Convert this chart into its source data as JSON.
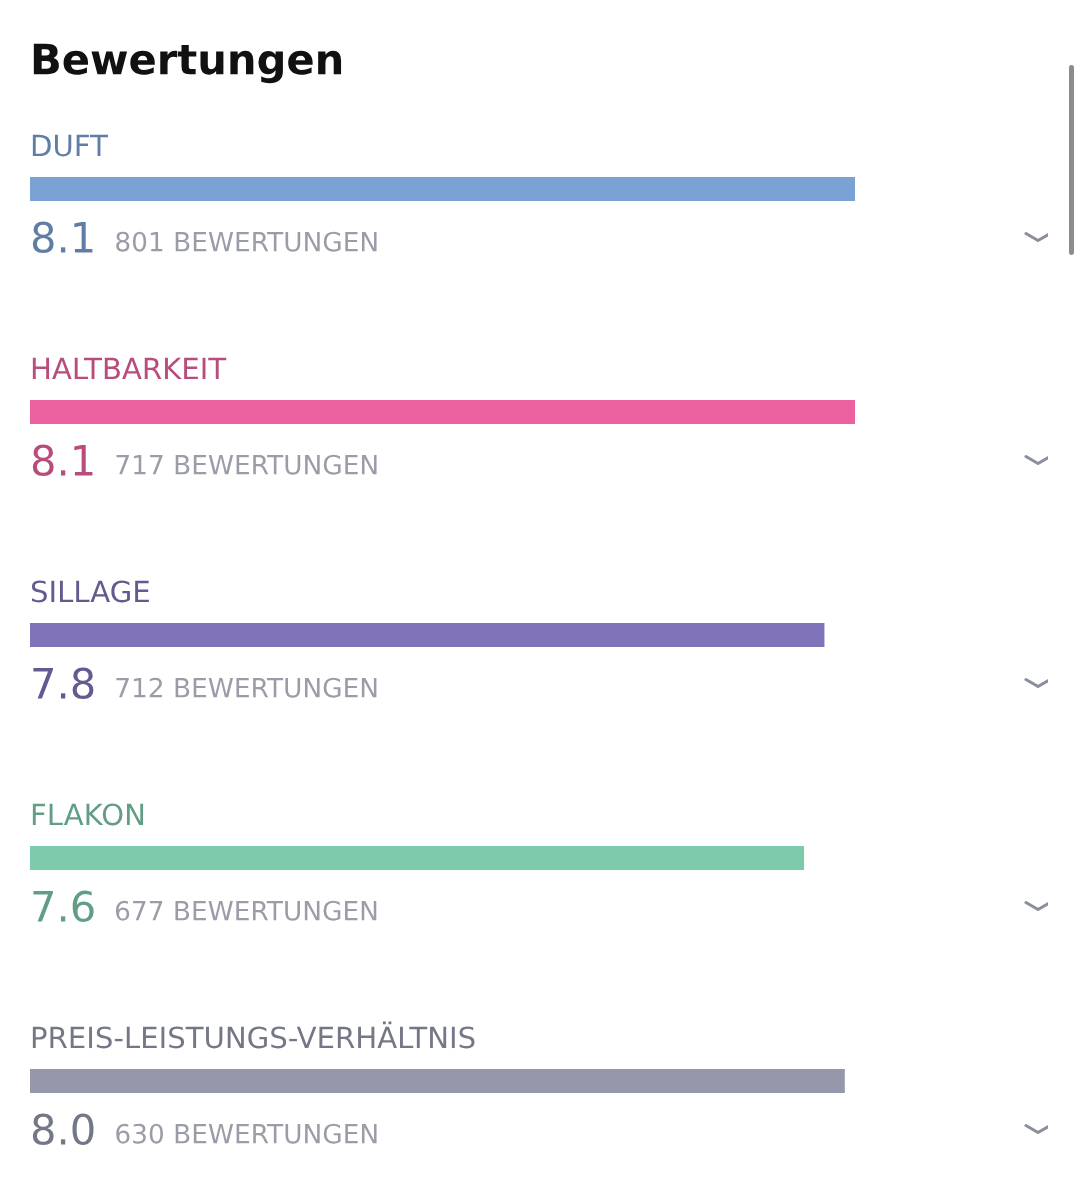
{
  "chart_data": {
    "type": "bar",
    "orientation": "horizontal",
    "title": "Bewertungen",
    "categories": [
      "DUFT",
      "HALTBARKEIT",
      "SILLAGE",
      "FLAKON",
      "PREIS-LEISTUNGS-VERHÄLTNIS"
    ],
    "values": [
      8.1,
      8.1,
      7.8,
      7.6,
      8.0
    ],
    "colors": [
      "#7ba2d4",
      "#ec619f",
      "#8073b9",
      "#7dcaaa",
      "#9598aa"
    ],
    "value_labels": [
      "8.1",
      "8.1",
      "7.8",
      "7.6",
      "8.0"
    ],
    "annotations": [
      "801 BEWERTUNGEN",
      "717 BEWERTUNGEN",
      "712 BEWERTUNGEN",
      "677 BEWERTUNGEN",
      "630 BEWERTUNGEN"
    ]
  }
}
